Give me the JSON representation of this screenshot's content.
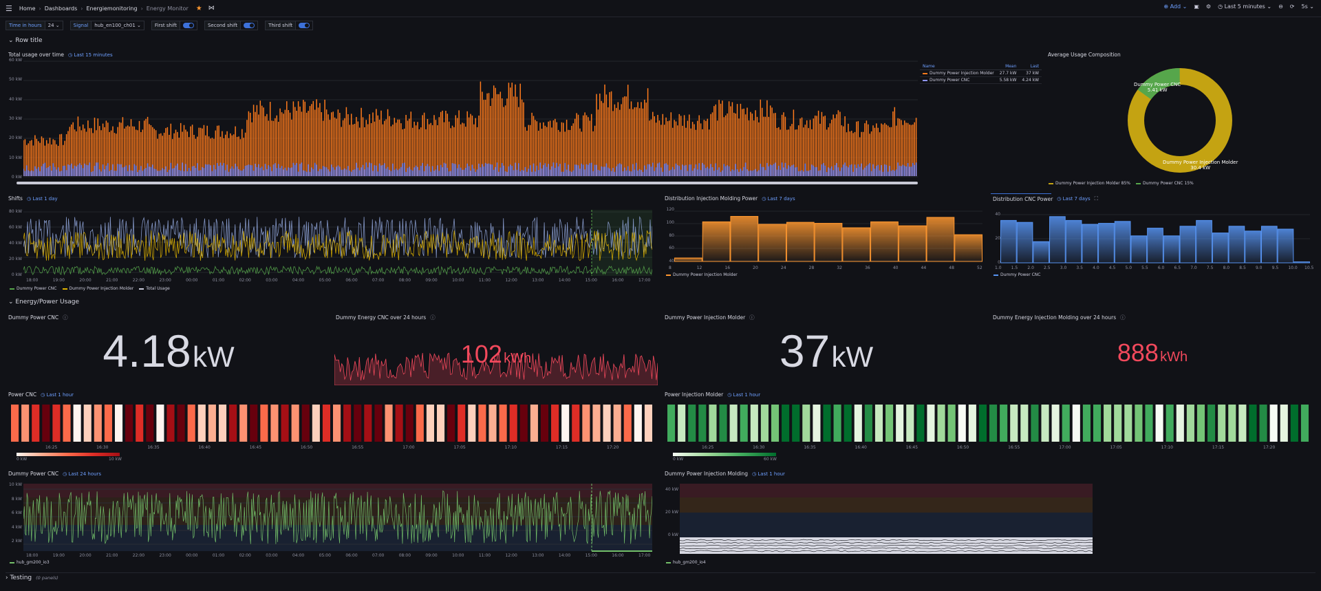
{
  "breadcrumb": {
    "home": "Home",
    "dashboards": "Dashboards",
    "folder": "Energiemonitoring",
    "current": "Energy Monitor"
  },
  "toolbar": {
    "add": "Add",
    "time_range": "Last 5 minutes",
    "refresh": "5s"
  },
  "variables": [
    {
      "label": "Time in hours",
      "value": "24"
    },
    {
      "label": "Signal",
      "value": "hub_en100_ch01"
    },
    {
      "label": "First shift",
      "toggle": true
    },
    {
      "label": "Second shift",
      "toggle": true
    },
    {
      "label": "Third shift",
      "toggle": true
    }
  ],
  "rows": {
    "row1": "Row title",
    "row2": "Energy/Power Usage",
    "row3": "Testing",
    "row3_count": "(0 panels)"
  },
  "panels": {
    "total": {
      "title": "Total usage over time",
      "range": "Last 15 minutes",
      "yticks": [
        "60 kW",
        "50 kW",
        "40 kW",
        "30 kW",
        "20 kW",
        "10 kW",
        "0 kW"
      ],
      "legend_headers": [
        "Name",
        "Mean",
        "Last"
      ],
      "legend_rows": [
        {
          "name": "Dummy Power Injection Molder",
          "mean": "27.7 kW",
          "last": "37 kW",
          "color": "#ff7b1c"
        },
        {
          "name": "Dummy Power CNC",
          "mean": "5.58 kW",
          "last": "4.24 kW",
          "color": "#8f95ff"
        }
      ]
    },
    "donut": {
      "title": "Average Usage Composition",
      "label_cnc": "Dummy Power CNC",
      "label_cnc_val": "5.41 kW",
      "label_inj": "Dummy Power Injection Molder",
      "label_inj_val": "30.4 kW",
      "legend": [
        {
          "name": "Dummy Power Injection Molder",
          "pct": "85%",
          "color": "#c4a312"
        },
        {
          "name": "Dummy Power CNC",
          "pct": "15%",
          "color": "#56a64b"
        }
      ]
    },
    "shifts": {
      "title": "Shifts",
      "range": "Last 1 day",
      "yticks": [
        "80 kW",
        "60 kW",
        "40 kW",
        "20 kW",
        "0 kW"
      ],
      "xticks": [
        "18:00",
        "19:00",
        "20:00",
        "21:00",
        "22:00",
        "23:00",
        "00:00",
        "01:00",
        "02:00",
        "03:00",
        "04:00",
        "05:00",
        "06:00",
        "07:00",
        "08:00",
        "09:00",
        "10:00",
        "11:00",
        "12:00",
        "13:00",
        "14:00",
        "15:00",
        "16:00",
        "17:00"
      ],
      "legend": [
        {
          "name": "Dummy Power CNC",
          "color": "#56a64b"
        },
        {
          "name": "Dummy Power Injection Molder",
          "color": "#e0b400"
        },
        {
          "name": "Total Usage",
          "color": "#ccccdc"
        }
      ]
    },
    "dist_inj": {
      "title": "Distribution Injection Molding Power",
      "range": "Last 7 days",
      "yticks": [
        "120",
        "100",
        "80",
        "60",
        "40"
      ],
      "xticks": [
        "8",
        "12",
        "16",
        "20",
        "24",
        "28",
        "32",
        "36",
        "40",
        "44",
        "48",
        "52"
      ],
      "legend": "Dummy Power Injection Molder"
    },
    "dist_cnc": {
      "title": "Distribution CNC Power",
      "range": "Last 7 days",
      "yticks": [
        "40",
        "20",
        "0"
      ],
      "xticks": [
        "1.0",
        "1.5",
        "2.0",
        "2.5",
        "3.0",
        "3.5",
        "4.0",
        "4.5",
        "5.0",
        "5.5",
        "6.0",
        "6.5",
        "7.0",
        "7.5",
        "8.0",
        "8.5",
        "9.0",
        "9.5",
        "10.0",
        "10.5"
      ],
      "legend": "Dummy Power CNC"
    },
    "stat_cnc": {
      "title": "Dummy Power CNC",
      "value": "4.18",
      "unit": "kW"
    },
    "stat_cnc_energy": {
      "title": "Dummy Energy CNC over 24 hours",
      "value": "102",
      "unit": "kWh"
    },
    "stat_inj": {
      "title": "Dummy Power Injection Molder",
      "value": "37",
      "unit": "kW"
    },
    "stat_inj_energy": {
      "title": "Dummy Energy Injection Molding over 24 hours",
      "value": "888",
      "unit": "kWh"
    },
    "heat_cnc": {
      "title": "Power CNC",
      "range": "Last 1 hour",
      "xticks": [
        "16:25",
        "16:30",
        "16:35",
        "16:40",
        "16:45",
        "16:50",
        "16:55",
        "17:00",
        "17:05",
        "17:10",
        "17:15",
        "17:20"
      ],
      "scale_min": "0 kW",
      "scale_max": "10 kW"
    },
    "heat_inj": {
      "title": "Power Injection Molder",
      "range": "Last 1 hour",
      "xticks": [
        "16:25",
        "16:30",
        "16:35",
        "16:40",
        "16:45",
        "16:50",
        "16:55",
        "17:00",
        "17:05",
        "17:10",
        "17:15",
        "17:20"
      ],
      "scale_min": "0 kW",
      "scale_max": "60 kW"
    },
    "cnc24": {
      "title": "Dummy Power CNC",
      "range": "Last 24 hours",
      "yticks": [
        "10 kW",
        "8 kW",
        "6 kW",
        "4 kW",
        "2 kW"
      ],
      "xticks": [
        "18:00",
        "19:00",
        "20:00",
        "21:00",
        "22:00",
        "23:00",
        "00:00",
        "01:00",
        "02:00",
        "03:00",
        "04:00",
        "05:00",
        "06:00",
        "07:00",
        "08:00",
        "09:00",
        "10:00",
        "11:00",
        "12:00",
        "13:00",
        "14:00",
        "15:00",
        "16:00",
        "17:00"
      ],
      "legend": "hub_gm200_io3"
    },
    "inj1h": {
      "title": "Dummy Power Injection Molding",
      "range": "Last 1 hour",
      "yticks": [
        "40 kW",
        "20 kW",
        "0 kW"
      ],
      "legend": "hub_gm200_io4"
    }
  },
  "colors": {
    "accent": "#6e9fff",
    "orange": "#ff7b1c",
    "purple": "#8f95ff",
    "red": "#f2495c",
    "green": "#73bf69"
  }
}
